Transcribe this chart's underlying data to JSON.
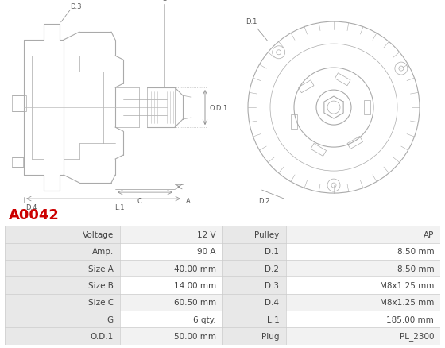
{
  "title": "A0042",
  "title_color": "#cc0000",
  "table_rows": [
    [
      "Voltage",
      "12 V",
      "Pulley",
      "AP"
    ],
    [
      "Amp.",
      "90 A",
      "D.1",
      "8.50 mm"
    ],
    [
      "Size A",
      "40.00 mm",
      "D.2",
      "8.50 mm"
    ],
    [
      "Size B",
      "14.00 mm",
      "D.3",
      "M8x1.25 mm"
    ],
    [
      "Size C",
      "60.50 mm",
      "D.4",
      "M8x1.25 mm"
    ],
    [
      "G",
      "6 qty.",
      "L.1",
      "185.00 mm"
    ],
    [
      "O.D.1",
      "50.00 mm",
      "Plug",
      "PL_2300"
    ]
  ],
  "border_color": "#cccccc",
  "label_col_bg": "#e8e8e8",
  "row_bg_odd": "#f2f2f2",
  "row_bg_even": "#ffffff",
  "text_color": "#444444",
  "font_size": 7.5,
  "line_color": "#888888",
  "drawing_line_color": "#aaaaaa",
  "background_color": "#ffffff"
}
